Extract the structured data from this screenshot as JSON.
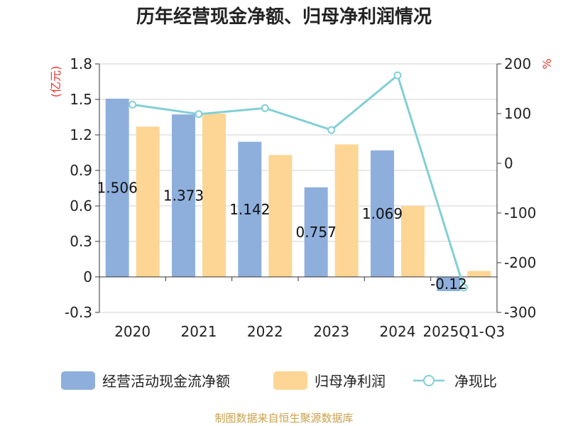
{
  "chart_data": {
    "type": "bar",
    "title": "历年经营现金净额、归母净利润情况",
    "categories": [
      "2020",
      "2021",
      "2022",
      "2023",
      "2024",
      "2025Q1-Q3"
    ],
    "series": [
      {
        "name": "经营活动现金流净额",
        "kind": "bar",
        "axis": "left",
        "color": "#8eafdc",
        "values": [
          1.506,
          1.373,
          1.142,
          0.757,
          1.069,
          -0.12
        ],
        "labels": [
          "1.506",
          "1.373",
          "1.142",
          "0.757",
          "1.069",
          "-0.12"
        ]
      },
      {
        "name": "归母净利润",
        "kind": "bar",
        "axis": "left",
        "color": "#fdd594",
        "values": [
          1.27,
          1.38,
          1.03,
          1.12,
          0.6,
          0.05
        ]
      },
      {
        "name": "净现比",
        "kind": "line",
        "axis": "right",
        "color": "#82cfd6",
        "values": [
          118,
          99,
          111,
          67,
          177,
          -250
        ]
      }
    ],
    "left_axis": {
      "unit_label": "(亿元)",
      "ylim": [
        -0.3,
        1.8
      ],
      "ticks": [
        -0.3,
        0,
        0.3,
        0.6,
        0.9,
        1.2,
        1.5,
        1.8
      ],
      "tick_labels": [
        "-0.3",
        "0",
        "0.3",
        "0.6",
        "0.9",
        "1.2",
        "1.5",
        "1.8"
      ]
    },
    "right_axis": {
      "unit_label": "%",
      "ylim": [
        -300,
        200
      ],
      "ticks": [
        -300,
        -200,
        -100,
        0,
        100,
        200
      ],
      "tick_labels": [
        "-300",
        "-200",
        "-100",
        "0",
        "100",
        "200"
      ]
    },
    "legend": [
      "经营活动现金流净额",
      "归母净利润",
      "净现比"
    ],
    "legend_position": "bottom",
    "grid": true,
    "unit_color": "#e8332a"
  },
  "footer": {
    "source": "制图数据来自恒生聚源数据库",
    "color": "#c9a14a"
  }
}
